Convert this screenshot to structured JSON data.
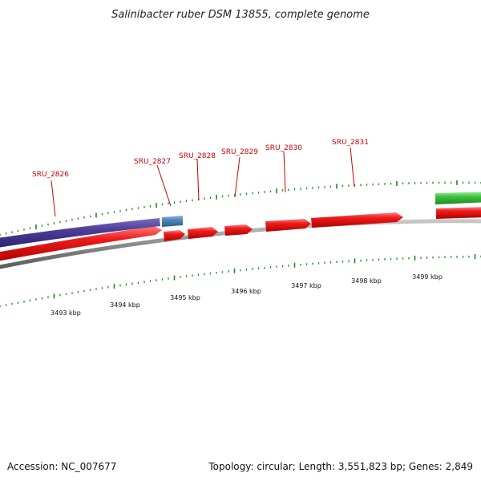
{
  "title": "Salinibacter ruber DSM 13855, complete genome",
  "accession": "Accession: NC_007677",
  "summary": "Topology: circular; Length: 3,551,823 bp; Genes: 2,849",
  "scale_labels": [
    "3493 kbp",
    "3494 kbp",
    "3495 kbp",
    "3496 kbp",
    "3497 kbp",
    "3498 kbp",
    "3499 kbp"
  ],
  "gene_labels": [
    "SRU_2826",
    "SRU_2827",
    "SRU_2828",
    "SRU_2829",
    "SRU_2830",
    "SRU_2831"
  ],
  "colors": {
    "cds": "#ee1c1c",
    "purple_feature": "#4b3d96",
    "blue_feature": "#4f86b8",
    "green_feature": "#3fbf3f",
    "backbone": "#8a8a8a",
    "ticks": "#1a8a1a",
    "labels": "#cc0000"
  }
}
